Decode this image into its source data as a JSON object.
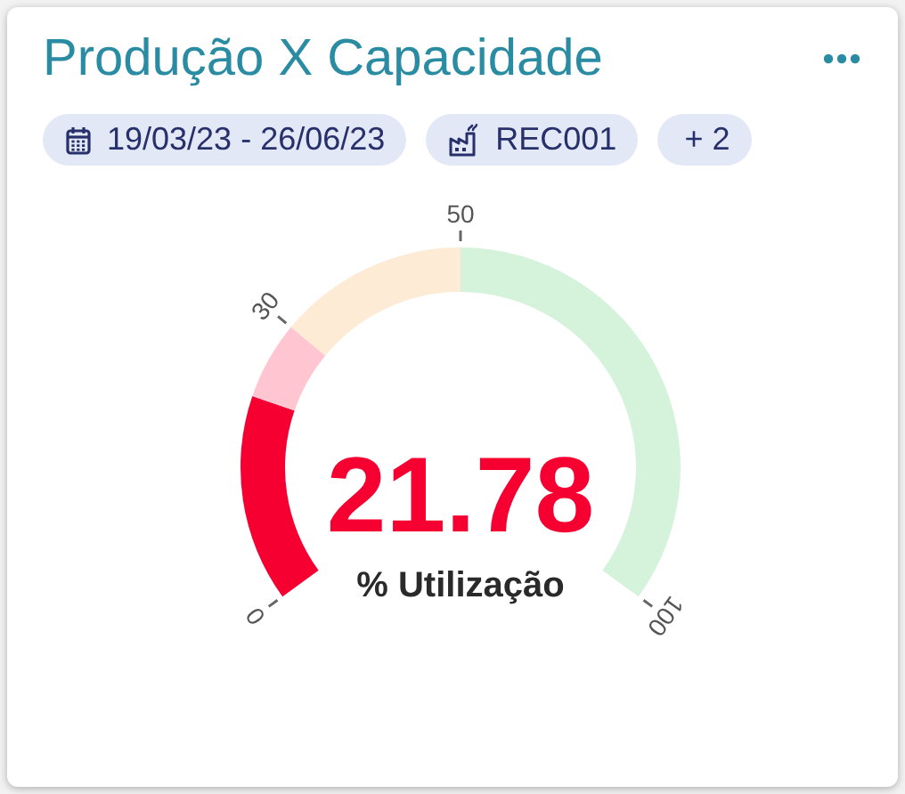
{
  "chart_data": {
    "type": "donut",
    "title": "Produção X Capacidade",
    "annotations": [
      "19/03/23 - 26/06/23",
      "REC001",
      "+ 2",
      "21.78",
      "% Utilização",
      "0",
      "30",
      "50",
      "100"
    ],
    "categories": [
      null,
      null,
      null,
      null
    ],
    "values": [
      21.78,
      8.22,
      20,
      50
    ],
    "colors": [
      "#f50031",
      "#ffc6d1",
      "#fdebd5",
      "#d5f2da"
    ]
  }
}
